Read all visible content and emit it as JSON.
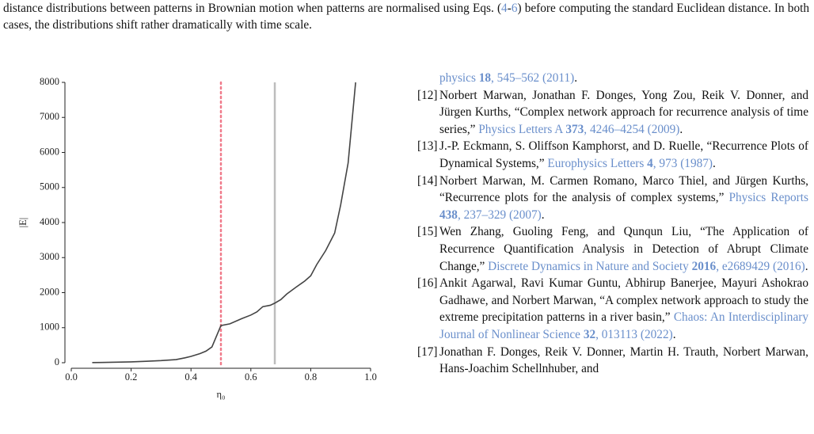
{
  "paragraph": {
    "parts": [
      {
        "text": "distance distributions between patterns in Brownian motion when patterns are normalised using Eqs. (",
        "style": "plain"
      },
      {
        "text": "4",
        "style": "link"
      },
      {
        "text": "-",
        "style": "plain"
      },
      {
        "text": "6",
        "style": "link"
      },
      {
        "text": ") before computing the standard Euclidean distance. In both cases, the distributions shift rather dramatically with time scale.",
        "style": "plain"
      }
    ]
  },
  "link_color": "#6a8fcb",
  "references": {
    "continuation": {
      "parts": [
        {
          "text": "physics ",
          "style": "link"
        },
        {
          "text": "18",
          "style": "link-bold"
        },
        {
          "text": ", 545–562 (2011)",
          "style": "link"
        },
        {
          "text": ".",
          "style": "plain"
        }
      ]
    },
    "items": [
      {
        "number": "[12]",
        "parts": [
          {
            "text": "Norbert Marwan, Jonathan F. Donges, Yong Zou, Reik V. Donner, and Jürgen Kurths, “Complex network approach for recurrence analysis of time series,” ",
            "style": "plain"
          },
          {
            "text": "Physics Letters A ",
            "style": "link"
          },
          {
            "text": "373",
            "style": "link-bold"
          },
          {
            "text": ", 4246–4254 (2009)",
            "style": "link"
          },
          {
            "text": ".",
            "style": "plain"
          }
        ]
      },
      {
        "number": "[13]",
        "parts": [
          {
            "text": "J.-P. Eckmann, S. Oliffson Kamphorst, and D. Ruelle, “Recurrence Plots of Dynamical Systems,” ",
            "style": "plain"
          },
          {
            "text": "Europhysics Letters ",
            "style": "link"
          },
          {
            "text": "4",
            "style": "link-bold"
          },
          {
            "text": ", 973 (1987)",
            "style": "link"
          },
          {
            "text": ".",
            "style": "plain"
          }
        ]
      },
      {
        "number": "[14]",
        "parts": [
          {
            "text": "Norbert Marwan, M. Carmen Romano, Marco Thiel, and Jürgen Kurths, “Recurrence plots for the analysis of complex systems,” ",
            "style": "plain"
          },
          {
            "text": "Physics Reports ",
            "style": "link"
          },
          {
            "text": "438",
            "style": "link-bold"
          },
          {
            "text": ", 237–329 (2007)",
            "style": "link"
          },
          {
            "text": ".",
            "style": "plain"
          }
        ]
      },
      {
        "number": "[15]",
        "parts": [
          {
            "text": "Wen Zhang, Guoling Feng, and Qunqun Liu, “The Application of Recurrence Quantification Analysis in Detection of Abrupt Climate Change,” ",
            "style": "plain"
          },
          {
            "text": "Discrete Dynamics in Nature and Society ",
            "style": "link"
          },
          {
            "text": "2016",
            "style": "link-bold"
          },
          {
            "text": ", e2689429 (2016)",
            "style": "link"
          },
          {
            "text": ".",
            "style": "plain"
          }
        ]
      },
      {
        "number": "[16]",
        "parts": [
          {
            "text": "Ankit Agarwal, Ravi Kumar Guntu, Abhirup Banerjee, Mayuri Ashokrao Gadhawe, and Norbert Marwan, “A complex network approach to study the extreme precipitation patterns in a river basin,” ",
            "style": "plain"
          },
          {
            "text": "Chaos: An Interdisciplinary Journal of Nonlinear Science ",
            "style": "link"
          },
          {
            "text": "32",
            "style": "link-bold"
          },
          {
            "text": ", 013113 (2022)",
            "style": "link"
          },
          {
            "text": ".",
            "style": "plain"
          }
        ]
      },
      {
        "number": "[17]",
        "parts": [
          {
            "text": "Jonathan F. Donges, Reik V. Donner, Martin H. Trauth, Norbert Marwan, Hans-Joachim Schellnhuber, and",
            "style": "plain"
          }
        ]
      }
    ]
  },
  "chart_data": {
    "type": "line",
    "xlabel": "η₀",
    "ylabel": "|E|",
    "x": [
      0.07,
      0.1,
      0.15,
      0.2,
      0.25,
      0.3,
      0.35,
      0.38,
      0.4,
      0.43,
      0.45,
      0.47,
      0.5,
      0.53,
      0.57,
      0.6,
      0.62,
      0.64,
      0.665,
      0.68,
      0.7,
      0.72,
      0.75,
      0.78,
      0.8,
      0.82,
      0.85,
      0.88,
      0.9,
      0.925,
      0.95
    ],
    "values": [
      5,
      8,
      15,
      25,
      40,
      60,
      90,
      140,
      180,
      260,
      330,
      450,
      1060,
      1110,
      1260,
      1360,
      1450,
      1600,
      1640,
      1700,
      1800,
      1960,
      2150,
      2330,
      2480,
      2800,
      3200,
      3700,
      4500,
      5700,
      8000
    ],
    "color": "#444444",
    "vlines": [
      {
        "x": 0.5,
        "color": "#f07a8a",
        "style": "dotted"
      },
      {
        "x": 0.68,
        "color": "#bdbdbd",
        "style": "solid"
      }
    ],
    "xlim": [
      0,
      1
    ],
    "ylim": [
      0,
      8000
    ],
    "xticks": [
      {
        "value": 0,
        "label": "0.0"
      },
      0.2,
      0.4,
      0.6,
      0.8,
      {
        "value": 1,
        "label": "1.0"
      }
    ],
    "yticks": [
      0,
      1000,
      2000,
      3000,
      4000,
      5000,
      6000,
      7000,
      8000
    ],
    "grid": false
  }
}
